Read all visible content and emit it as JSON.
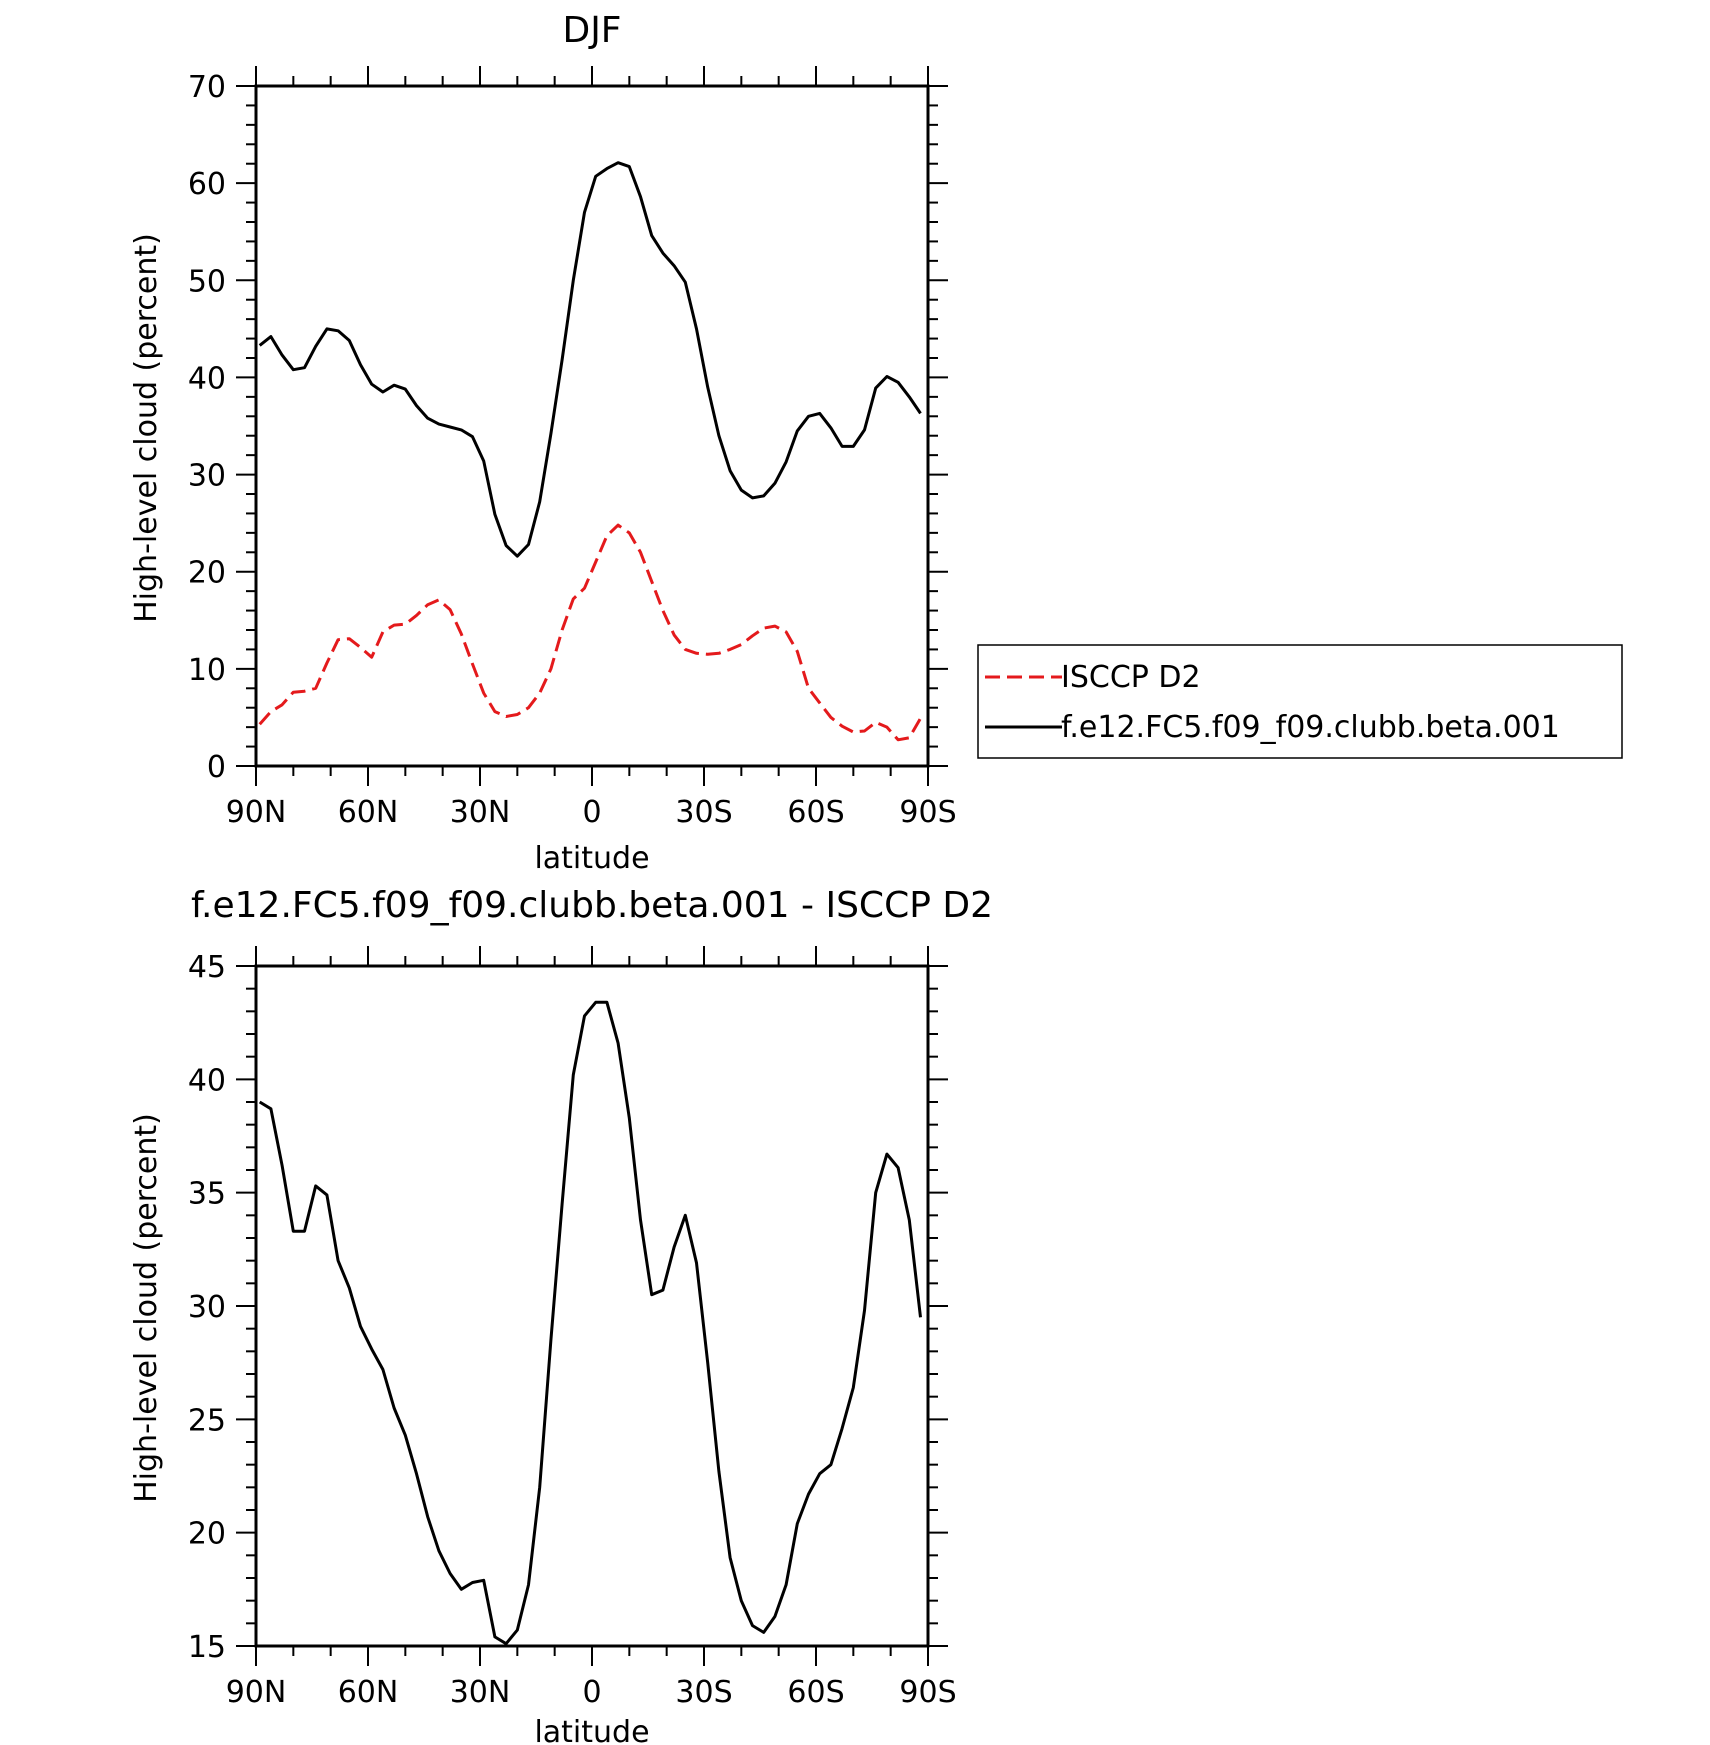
{
  "chart_data": [
    {
      "type": "line",
      "title": "DJF",
      "xlabel": "latitude",
      "ylabel": "High-level cloud (percent)",
      "xlim": [
        90,
        -90
      ],
      "ylim": [
        0,
        70
      ],
      "yticks": [
        0,
        10,
        20,
        30,
        40,
        50,
        60,
        70
      ],
      "ytick_labels": [
        "0",
        "10",
        "20",
        "30",
        "40",
        "50",
        "60",
        "70"
      ],
      "xticks": [
        90,
        60,
        30,
        0,
        -30,
        -60,
        -90
      ],
      "xtick_labels": [
        "90N",
        "60N",
        "30N",
        "0",
        "30S",
        "60S",
        "90S"
      ],
      "grid": false,
      "legend": "right",
      "x": [
        89,
        86,
        83,
        80,
        77,
        74,
        71,
        68,
        65,
        62,
        59,
        56,
        53,
        50,
        47,
        44,
        41,
        38,
        35,
        32,
        29,
        26,
        23,
        20,
        17,
        14,
        11,
        8,
        5,
        2,
        -1,
        -4,
        -7,
        -10,
        -13,
        -16,
        -19,
        -22,
        -25,
        -28,
        -31,
        -34,
        -37,
        -40,
        -43,
        -46,
        -49,
        -52,
        -55,
        -58,
        -61,
        -64,
        -67,
        -70,
        -73,
        -76,
        -79,
        -82,
        -85,
        -88
      ],
      "series": [
        {
          "name": "ISCCP D2",
          "color": "#e41a1c",
          "dash": "dashed",
          "values": [
            4.3,
            5.6,
            6.3,
            7.6,
            7.7,
            8.0,
            10.6,
            13.0,
            13.1,
            12.2,
            11.2,
            13.8,
            14.5,
            14.6,
            15.5,
            16.6,
            17.1,
            16.1,
            13.6,
            10.5,
            7.5,
            5.6,
            5.1,
            5.3,
            6.0,
            7.5,
            10.0,
            14.0,
            17.2,
            18.3,
            21.0,
            23.7,
            24.8,
            24.0,
            22.0,
            19.0,
            16.0,
            13.5,
            12.0,
            11.6,
            11.5,
            11.6,
            12.0,
            12.5,
            13.4,
            14.2,
            14.4,
            13.8,
            11.8,
            8.0,
            6.5,
            5.0,
            4.1,
            3.5,
            3.6,
            4.5,
            4.0,
            2.7,
            2.9,
            4.9
          ]
        },
        {
          "name": "f.e12.FC5.f09_f09.clubb.beta.001",
          "color": "#000000",
          "dash": "solid",
          "values": [
            43.3,
            44.2,
            42.3,
            40.8,
            41.0,
            43.2,
            45.0,
            44.8,
            43.8,
            41.3,
            39.3,
            38.5,
            39.2,
            38.8,
            37.1,
            35.8,
            35.2,
            34.9,
            34.6,
            33.9,
            31.4,
            25.9,
            22.7,
            21.6,
            22.8,
            27.2,
            34.2,
            41.8,
            50.0,
            57.0,
            60.7,
            61.5,
            62.1,
            61.7,
            58.6,
            54.6,
            52.8,
            51.5,
            49.8,
            45.0,
            39.0,
            34.0,
            30.4,
            28.4,
            27.6,
            27.8,
            29.1,
            31.3,
            34.5,
            36.0,
            36.3,
            34.8,
            32.9,
            32.9,
            34.6,
            38.9,
            40.1,
            39.5,
            38.0,
            36.3
          ]
        }
      ]
    },
    {
      "type": "line",
      "title": "f.e12.FC5.f09_f09.clubb.beta.001 - ISCCP D2",
      "xlabel": "latitude",
      "ylabel": "High-level cloud (percent)",
      "xlim": [
        90,
        -90
      ],
      "ylim": [
        15,
        45
      ],
      "yticks": [
        15,
        20,
        25,
        30,
        35,
        40,
        45
      ],
      "ytick_labels": [
        "15",
        "20",
        "25",
        "30",
        "35",
        "40",
        "45"
      ],
      "xticks": [
        90,
        60,
        30,
        0,
        -30,
        -60,
        -90
      ],
      "xtick_labels": [
        "90N",
        "60N",
        "30N",
        "0",
        "30S",
        "60S",
        "90S"
      ],
      "grid": false,
      "x": [
        89,
        86,
        83,
        80,
        77,
        74,
        71,
        68,
        65,
        62,
        59,
        56,
        53,
        50,
        47,
        44,
        41,
        38,
        35,
        32,
        29,
        26,
        23,
        20,
        17,
        14,
        11,
        8,
        5,
        2,
        -1,
        -4,
        -7,
        -10,
        -13,
        -16,
        -19,
        -22,
        -25,
        -28,
        -31,
        -34,
        -37,
        -40,
        -43,
        -46,
        -49,
        -52,
        -55,
        -58,
        -61,
        -64,
        -67,
        -70,
        -73,
        -76,
        -79,
        -82,
        -85,
        -88
      ],
      "series": [
        {
          "color": "#000000",
          "values": [
            39.0,
            38.7,
            36.2,
            33.3,
            33.3,
            35.3,
            34.9,
            32.0,
            30.8,
            29.1,
            28.1,
            27.2,
            25.5,
            24.3,
            22.6,
            20.7,
            19.2,
            18.2,
            17.5,
            17.8,
            17.9,
            15.4,
            15.1,
            15.7,
            17.7,
            22.0,
            28.5,
            34.5,
            40.2,
            42.8,
            43.4,
            43.4,
            41.6,
            38.3,
            33.8,
            30.5,
            30.7,
            32.6,
            34.0,
            31.9,
            27.5,
            22.7,
            18.9,
            17.0,
            15.9,
            15.6,
            16.3,
            17.7,
            20.4,
            21.7,
            22.6,
            23.0,
            24.6,
            26.4,
            29.8,
            35.0,
            36.7,
            36.1,
            33.8,
            29.5
          ]
        }
      ]
    }
  ]
}
